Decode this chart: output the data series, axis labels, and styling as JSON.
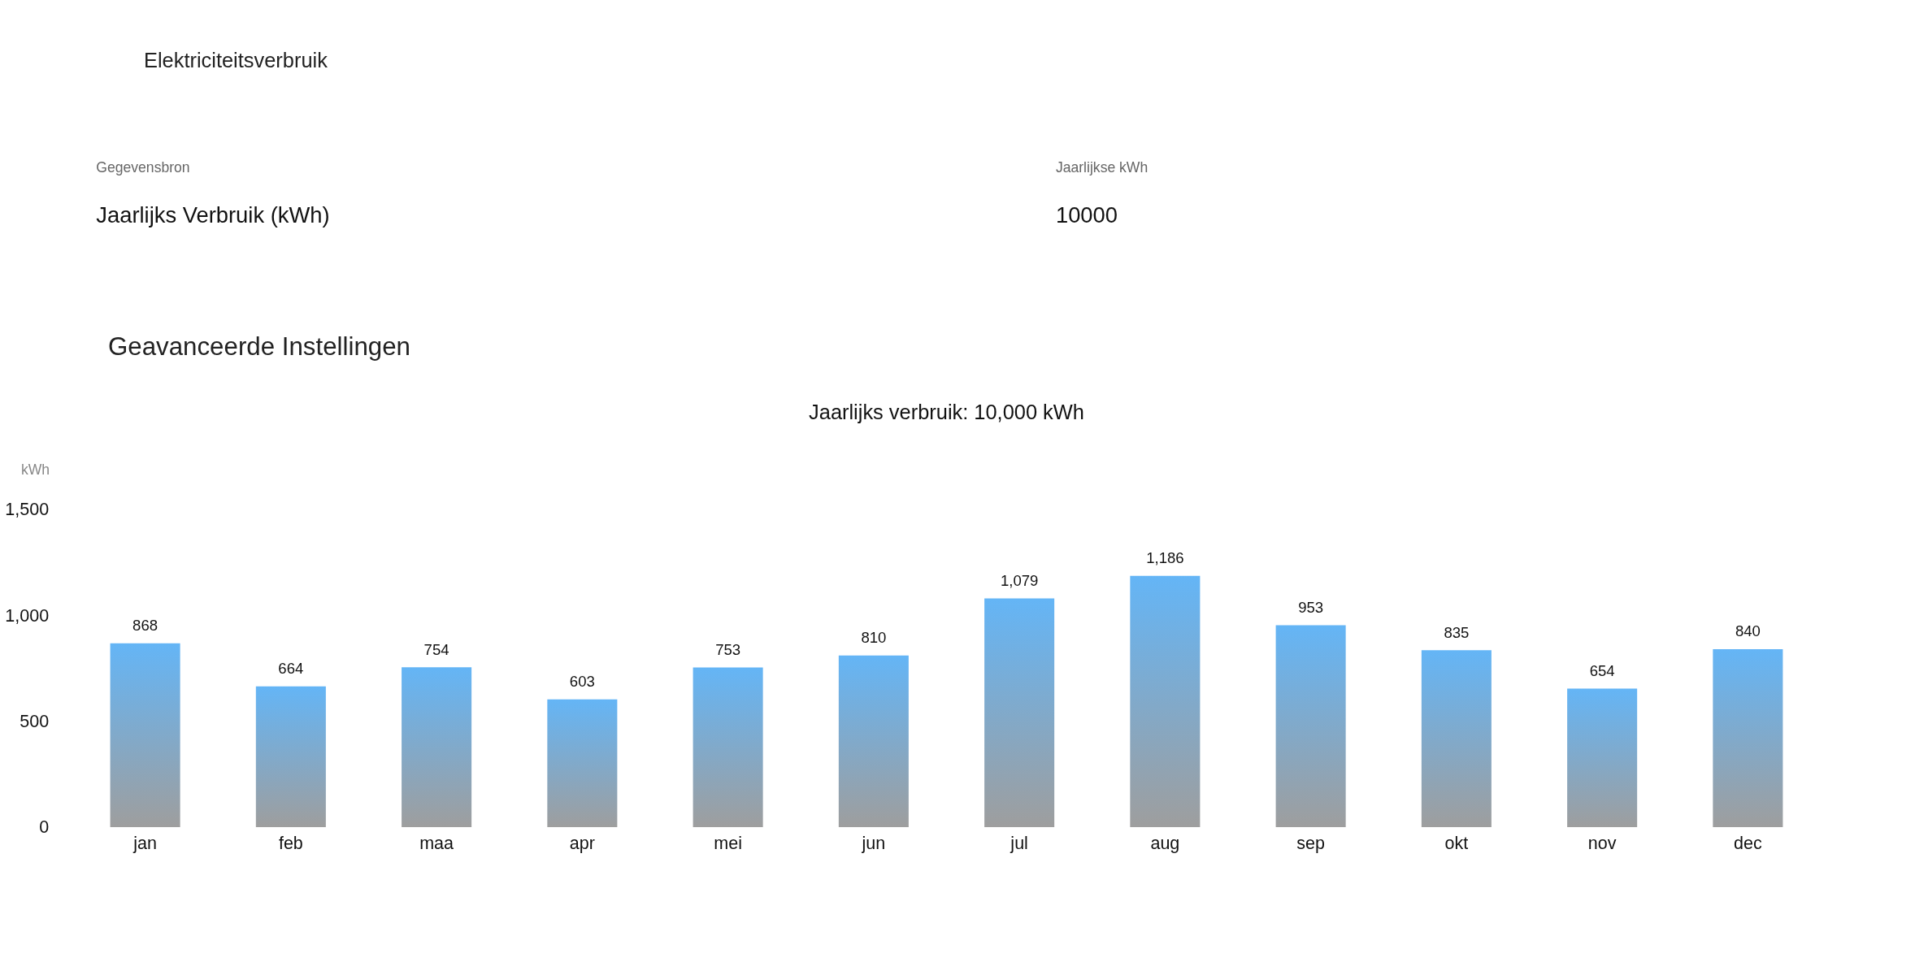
{
  "chart_data": {
    "type": "bar",
    "title": "Jaarlijks verbruik: 10,000 kWh",
    "ylabel": "kWh",
    "annotations": [
      "Elektriciteitsverbruik",
      "Gegevensbron",
      "Jaarlijks Verbruik (kWh)",
      "Jaarlijkse kWh",
      "10000",
      "Geavanceerde Instellingen"
    ],
    "categories": [
      "jan",
      "feb",
      "maa",
      "apr",
      "mei",
      "jun",
      "jul",
      "aug",
      "sep",
      "okt",
      "nov",
      "dec"
    ],
    "values": [
      868,
      664,
      754,
      603,
      753,
      810,
      1079,
      1186,
      953,
      835,
      654,
      840
    ],
    "color": "#64b5f6",
    "ylim": [
      0,
      1500
    ],
    "yticks": [
      {
        "value": 0,
        "label": "0"
      },
      {
        "value": 500,
        "label": "500"
      },
      {
        "value": 1000,
        "label": "1,000"
      },
      {
        "value": 1500,
        "label": "1,500"
      }
    ],
    "value_labels": [
      "868",
      "664",
      "754",
      "603",
      "753",
      "810",
      "1,079",
      "1,186",
      "953",
      "835",
      "654",
      "840"
    ],
    "grid": false
  }
}
